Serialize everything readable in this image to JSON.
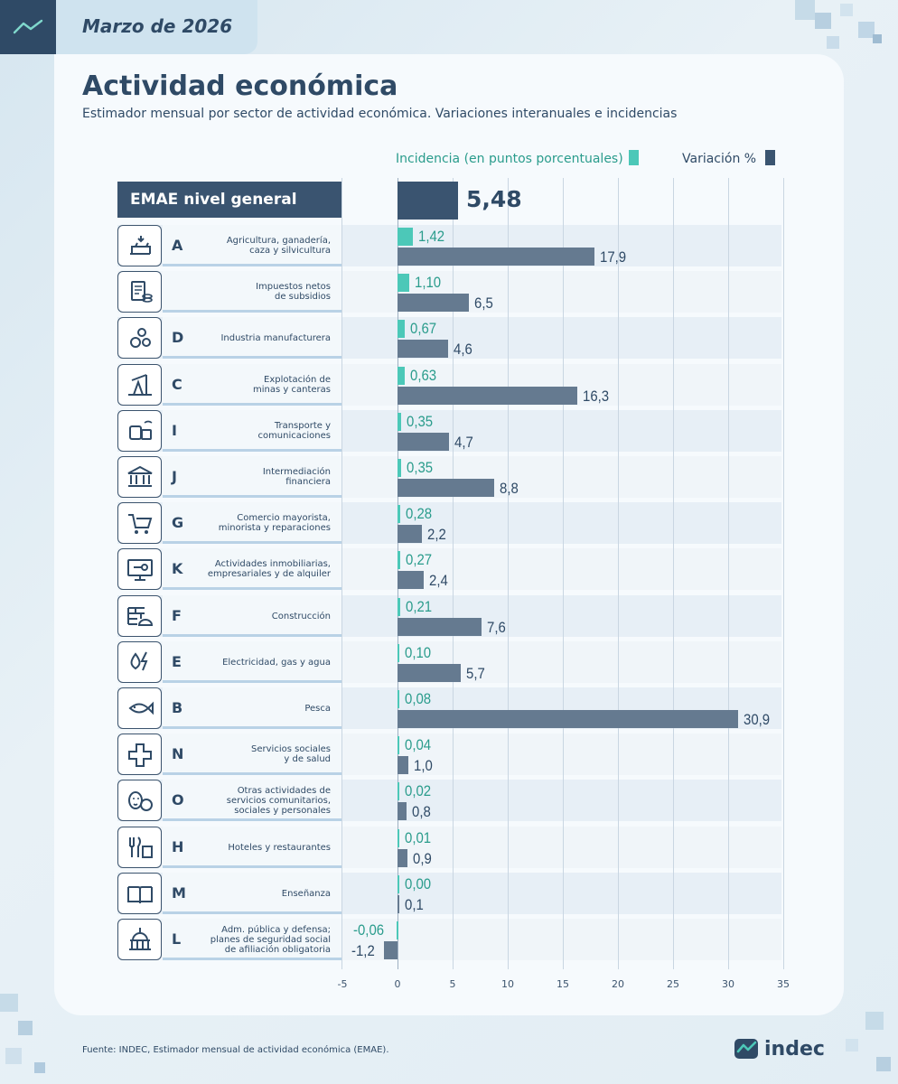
{
  "header": {
    "date": "Marzo de 2026"
  },
  "title": "Actividad económica",
  "subtitle": "Estimador mensual por sector de actividad económica. Variaciones interanuales e incidencias",
  "legend": {
    "incidencia_label": "Incidencia (en puntos porcentuales)",
    "variacion_label": "Variación %"
  },
  "colors": {
    "incidencia": "#4cc8b8",
    "variacion": "#657a90",
    "total": "#3a5470",
    "text": "#2f4a66"
  },
  "emae": {
    "label": "EMAE nivel general",
    "value_label": "5,48"
  },
  "footer": {
    "source": "Fuente: INDEC, Estimador mensual de actividad económica (EMAE).",
    "brand": "indec"
  },
  "chart_data": {
    "type": "bar",
    "orientation": "horizontal",
    "xlim": [
      -5,
      35
    ],
    "xticks": [
      "-5",
      "0",
      "5",
      "10",
      "15",
      "20",
      "25",
      "30",
      "35"
    ],
    "total": {
      "name": "EMAE nivel general",
      "value": 5.48
    },
    "series": [
      {
        "name": "Incidencia (en puntos porcentuales)",
        "values": [
          1.42,
          1.1,
          0.67,
          0.63,
          0.35,
          0.35,
          0.28,
          0.27,
          0.21,
          0.1,
          0.08,
          0.04,
          0.02,
          0.01,
          0.0,
          -0.06
        ]
      },
      {
        "name": "Variación %",
        "values": [
          17.9,
          6.5,
          4.6,
          16.3,
          4.7,
          8.8,
          2.2,
          2.4,
          7.6,
          5.7,
          30.9,
          1.0,
          0.8,
          0.9,
          0.1,
          -1.2
        ]
      }
    ],
    "sectors": [
      {
        "letter": "A",
        "name": "Agricultura, ganadería,\ncaza y silvicultura",
        "icon": "agriculture-icon",
        "inc": 1.42,
        "inc_label": "1,42",
        "var": 17.9,
        "var_label": "17,9"
      },
      {
        "letter": "",
        "name": "Impuestos netos\nde subsidios",
        "icon": "taxes-icon",
        "inc": 1.1,
        "inc_label": "1,10",
        "var": 6.5,
        "var_label": "6,5"
      },
      {
        "letter": "D",
        "name": "Industria manufacturera",
        "icon": "gears-icon",
        "inc": 0.67,
        "inc_label": "0,67",
        "var": 4.6,
        "var_label": "4,6"
      },
      {
        "letter": "C",
        "name": "Explotación de\nminas y canteras",
        "icon": "oil-pump-icon",
        "inc": 0.63,
        "inc_label": "0,63",
        "var": 16.3,
        "var_label": "16,3"
      },
      {
        "letter": "I",
        "name": "Transporte y\ncomunicaciones",
        "icon": "transport-icon",
        "inc": 0.35,
        "inc_label": "0,35",
        "var": 4.7,
        "var_label": "4,7"
      },
      {
        "letter": "J",
        "name": "Intermediación\nfinanciera",
        "icon": "bank-icon",
        "inc": 0.35,
        "inc_label": "0,35",
        "var": 8.8,
        "var_label": "8,8"
      },
      {
        "letter": "G",
        "name": "Comercio mayorista,\nminorista y reparaciones",
        "icon": "cart-icon",
        "inc": 0.28,
        "inc_label": "0,28",
        "var": 2.2,
        "var_label": "2,2"
      },
      {
        "letter": "K",
        "name": "Actividades inmobiliarias,\nempresariales y de alquiler",
        "icon": "monitor-key-icon",
        "inc": 0.27,
        "inc_label": "0,27",
        "var": 2.4,
        "var_label": "2,4"
      },
      {
        "letter": "F",
        "name": "Construcción",
        "icon": "bricks-helmet-icon",
        "inc": 0.21,
        "inc_label": "0,21",
        "var": 7.6,
        "var_label": "7,6"
      },
      {
        "letter": "E",
        "name": "Electricidad, gas y agua",
        "icon": "utilities-icon",
        "inc": 0.1,
        "inc_label": "0,10",
        "var": 5.7,
        "var_label": "5,7"
      },
      {
        "letter": "B",
        "name": "Pesca",
        "icon": "fish-icon",
        "inc": 0.08,
        "inc_label": "0,08",
        "var": 30.9,
        "var_label": "30,9"
      },
      {
        "letter": "N",
        "name": "Servicios sociales\ny de salud",
        "icon": "health-cross-icon",
        "inc": 0.04,
        "inc_label": "0,04",
        "var": 1.0,
        "var_label": "1,0"
      },
      {
        "letter": "O",
        "name": "Otras actividades de\nservicios comunitarios,\nsociales y personales",
        "icon": "masks-ball-icon",
        "inc": 0.02,
        "inc_label": "0,02",
        "var": 0.8,
        "var_label": "0,8"
      },
      {
        "letter": "H",
        "name": "Hoteles y restaurantes",
        "icon": "cutlery-hotel-icon",
        "inc": 0.01,
        "inc_label": "0,01",
        "var": 0.9,
        "var_label": "0,9"
      },
      {
        "letter": "M",
        "name": "Enseñanza",
        "icon": "book-icon",
        "inc": 0.0,
        "inc_label": "0,00",
        "var": 0.1,
        "var_label": "0,1"
      },
      {
        "letter": "L",
        "name": "Adm. pública y defensa;\nplanes de seguridad social\nde afiliación obligatoria",
        "icon": "capitol-icon",
        "inc": -0.06,
        "inc_label": "-0,06",
        "var": -1.2,
        "var_label": "-1,2"
      }
    ]
  }
}
